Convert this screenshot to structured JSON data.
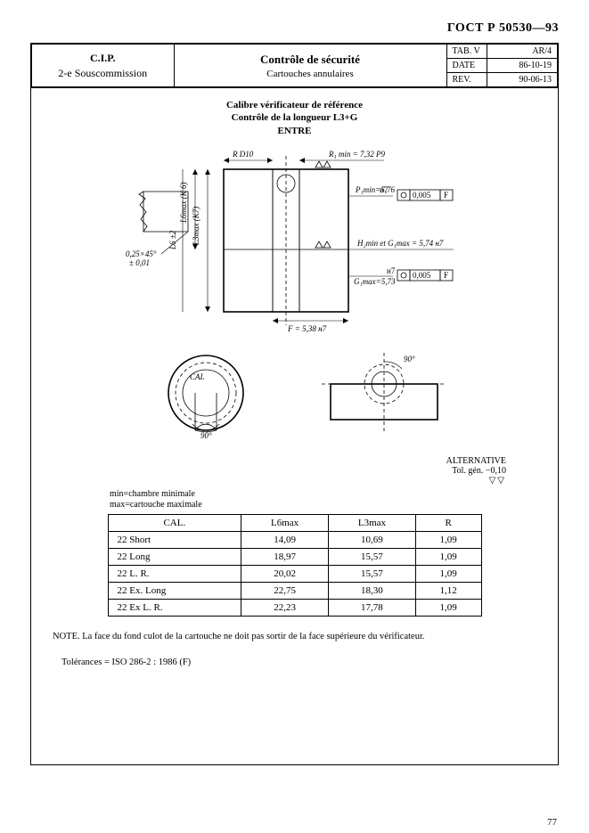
{
  "doc_id": "ГОСТ  Р   50530—93",
  "header": {
    "left_line1": "C.I.P.",
    "left_line2": "2-e Souscommission",
    "center_title": "Contrôle de sécurité",
    "center_sub": "Cartouches annulaires",
    "tab_label": "TAB. V",
    "tab_val": "AR/4",
    "date_label": "DATE",
    "date_val": "86-10-19",
    "rev_label": "REV.",
    "rev_val": "90-06-13"
  },
  "drawing": {
    "title_l1": "Calibre vérificateur de référence",
    "title_l2": "Contrôle de la longueur L3+G",
    "title_l3": "ENTRE",
    "top_left_dim": "R D10",
    "top_right_dim": "R₁ min = 7,32 P9",
    "p1_label": "P₁min=5,76",
    "p1_tol": "0,005",
    "p1_box": "F",
    "h2g1": "H₂min et G₁max = 5,74  н7",
    "g1max": "G₁max=5,73",
    "g1_tol": "0,005",
    "g1_box": "F",
    "l6_label": "L6 ±2",
    "l3_label": "L3max (K7)",
    "l6m_label": "L6max (K 6)",
    "chamfer": "0,25×45°",
    "chamfer_tol": "± 0,01",
    "bottom_dim": "F = 5,38  н7",
    "cal": "CAL",
    "ang90a": "90°",
    "ang90b": "90°",
    "alt_l1": "ALTERNATIVE",
    "alt_l2": "Tol. gén. −0,10",
    "min_line": "min=chambre minimale",
    "max_line": "max=cartouche maximale"
  },
  "table": {
    "columns": [
      "CAL.",
      "L6max",
      "L3max",
      "R"
    ],
    "rows": [
      [
        "22 Short",
        "14,09",
        "10,69",
        "1,09"
      ],
      [
        "22 Long",
        "18,97",
        "15,57",
        "1,09"
      ],
      [
        "22 L. R.",
        "20,02",
        "15,57",
        "1,09"
      ],
      [
        "22 Ex. Long",
        "22,75",
        "18,30",
        "1,12"
      ],
      [
        "22 Ex L. R.",
        "22,23",
        "17,78",
        "1,09"
      ]
    ]
  },
  "note": "NOTE. La face du fond culot de la cartouche ne doit pas sortir  de la face supérieure  du vérificateur.",
  "tolerances": "Tolérances = ISO 286-2 : 1986  (F)",
  "page_number": "77"
}
